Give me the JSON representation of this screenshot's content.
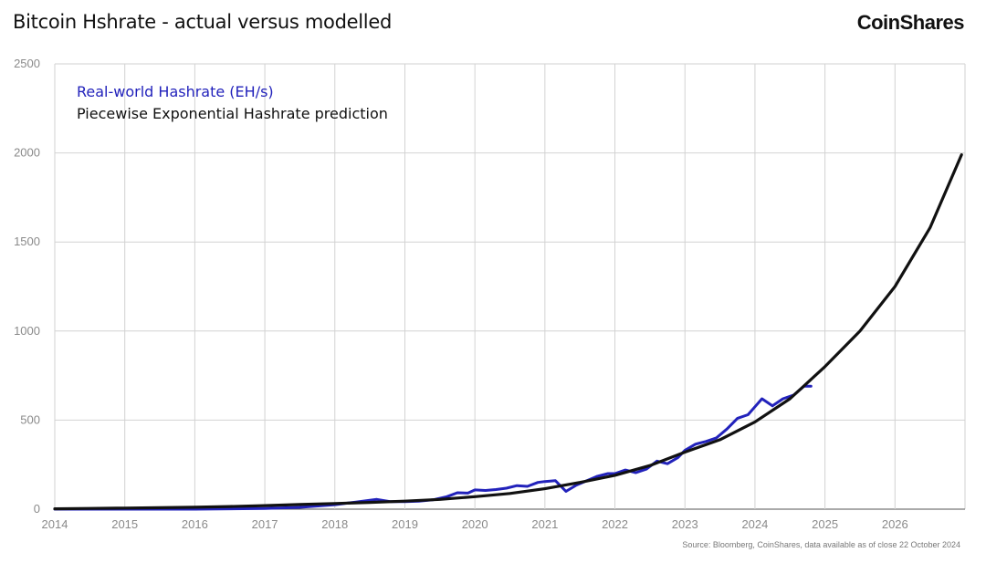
{
  "header": {
    "title": "Bitcoin Hshrate - actual versus modelled",
    "brand": "CoinShares"
  },
  "footer": {
    "source": "Source: Bloomberg, CoinShares, data available as of close 22 October 2024"
  },
  "colors": {
    "real": "#2222bb",
    "model": "#111111",
    "grid": "#d2d2d2"
  },
  "chart_data": {
    "type": "line",
    "title": "Bitcoin Hshrate - actual versus modelled",
    "xlim": [
      2014,
      2027
    ],
    "ylim": [
      0,
      2500
    ],
    "x_ticks": [
      "2014",
      "2015",
      "2016",
      "2017",
      "2018",
      "2019",
      "2020",
      "2021",
      "2022",
      "2023",
      "2024",
      "2025",
      "2026"
    ],
    "y_ticks": [
      "0",
      "500",
      "1000",
      "1500",
      "2000",
      "2500"
    ],
    "grid": true,
    "legend_position": "top-left",
    "series": [
      {
        "name": "Real-world Hashrate (EH/s)",
        "color": "#2222bb",
        "x": [
          2014.0,
          2015.0,
          2016.0,
          2017.0,
          2017.5,
          2018.0,
          2018.3,
          2018.6,
          2018.8,
          2019.0,
          2019.2,
          2019.4,
          2019.6,
          2019.75,
          2019.9,
          2020.0,
          2020.15,
          2020.3,
          2020.45,
          2020.6,
          2020.75,
          2020.9,
          2021.0,
          2021.15,
          2021.3,
          2021.45,
          2021.6,
          2021.75,
          2021.9,
          2022.0,
          2022.15,
          2022.3,
          2022.45,
          2022.6,
          2022.75,
          2022.9,
          2023.0,
          2023.15,
          2023.3,
          2023.45,
          2023.6,
          2023.75,
          2023.9,
          2024.0,
          2024.1,
          2024.25,
          2024.4,
          2024.55,
          2024.7,
          2024.8
        ],
        "y": [
          0,
          0,
          0,
          4,
          10,
          25,
          40,
          55,
          42,
          42,
          45,
          52,
          70,
          92,
          90,
          108,
          105,
          110,
          118,
          132,
          128,
          150,
          155,
          160,
          100,
          135,
          160,
          185,
          200,
          200,
          220,
          205,
          225,
          270,
          255,
          290,
          330,
          365,
          380,
          400,
          450,
          510,
          530,
          575,
          620,
          580,
          620,
          640,
          690,
          690
        ]
      },
      {
        "name": "Piecewise Exponential Hashrate prediction",
        "color": "#111111",
        "x": [
          2014.0,
          2014.5,
          2015.0,
          2015.5,
          2016.0,
          2016.5,
          2017.0,
          2017.5,
          2018.0,
          2018.5,
          2019.0,
          2019.5,
          2020.0,
          2020.5,
          2021.0,
          2021.5,
          2022.0,
          2022.5,
          2023.0,
          2023.5,
          2024.0,
          2024.5,
          2025.0,
          2025.5,
          2026.0,
          2026.5,
          2026.95
        ],
        "y": [
          2,
          4,
          6,
          8,
          11,
          15,
          20,
          26,
          32,
          38,
          45,
          55,
          70,
          88,
          115,
          150,
          190,
          245,
          320,
          390,
          490,
          620,
          800,
          1000,
          1250,
          1580,
          1990
        ]
      }
    ]
  }
}
